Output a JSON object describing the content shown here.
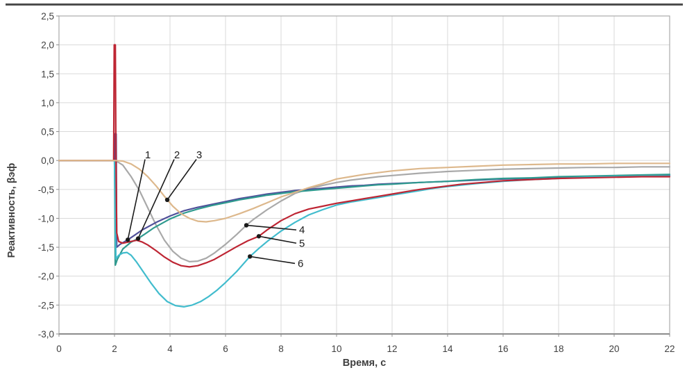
{
  "colors": {
    "grid": "#d9d9d9",
    "plot_border": "#ababab",
    "axis_line": "#8c8c8c",
    "tick_text": "#3f3f3f",
    "annotation": "#1a1a1a",
    "top_rule": "#4d4d4d",
    "background": "#ffffff"
  },
  "chart_data": {
    "type": "line",
    "title": "",
    "xlabel": "Время, с",
    "ylabel": "Реактивность, βэф",
    "xlim": [
      0,
      22
    ],
    "ylim": [
      -3.0,
      2.5
    ],
    "grid": true,
    "legend": "none",
    "xticks": [
      0,
      2,
      4,
      6,
      8,
      10,
      12,
      14,
      16,
      18,
      20,
      22
    ],
    "xtick_labels": [
      "0",
      "2",
      "4",
      "6",
      "8",
      "10",
      "12",
      "14",
      "16",
      "18",
      "20",
      "22"
    ],
    "yticks": [
      2.5,
      2.0,
      1.5,
      1.0,
      0.5,
      0.0,
      -0.5,
      -1.0,
      -1.5,
      -2.0,
      -2.5,
      -3.0
    ],
    "ytick_labels": [
      "2,5",
      "2,0",
      "1,5",
      "1,0",
      "0,5",
      "0,0",
      "-0,5",
      "-1,0",
      "-1,5",
      "-2,0",
      "-2,5",
      "-3,0"
    ],
    "draw_order": [
      "4",
      "1",
      "2",
      "6",
      "5",
      "3"
    ],
    "series": [
      {
        "name": "1",
        "color": "#50509a",
        "points": [
          [
            0,
            0
          ],
          [
            1.5,
            0
          ],
          [
            2.0,
            0
          ],
          [
            2.02,
            0.46
          ],
          [
            2.06,
            0.46
          ],
          [
            2.08,
            -1.5
          ],
          [
            2.2,
            -1.45
          ],
          [
            2.48,
            -1.37
          ],
          [
            2.7,
            -1.3
          ],
          [
            3.0,
            -1.2
          ],
          [
            3.5,
            -1.07
          ],
          [
            4.0,
            -0.96
          ],
          [
            4.5,
            -0.87
          ],
          [
            5.0,
            -0.81
          ],
          [
            5.5,
            -0.76
          ],
          [
            6.0,
            -0.71
          ],
          [
            6.5,
            -0.66
          ],
          [
            7.0,
            -0.62
          ],
          [
            7.5,
            -0.58
          ],
          [
            8.0,
            -0.55
          ],
          [
            8.5,
            -0.52
          ],
          [
            9.0,
            -0.5
          ],
          [
            9.5,
            -0.48
          ],
          [
            10.0,
            -0.46
          ],
          [
            10.5,
            -0.44
          ],
          [
            11.0,
            -0.43
          ],
          [
            11.5,
            -0.41
          ],
          [
            12.0,
            -0.4
          ],
          [
            13.0,
            -0.38
          ],
          [
            14.0,
            -0.36
          ],
          [
            15.0,
            -0.34
          ],
          [
            16.0,
            -0.32
          ],
          [
            17.0,
            -0.31
          ],
          [
            18.0,
            -0.3
          ],
          [
            19.0,
            -0.29
          ],
          [
            20.0,
            -0.28
          ],
          [
            21.0,
            -0.27
          ],
          [
            22.0,
            -0.26
          ]
        ]
      },
      {
        "name": "2",
        "color": "#2f9a8f",
        "points": [
          [
            0,
            0
          ],
          [
            1.5,
            0
          ],
          [
            2.0,
            0
          ],
          [
            2.03,
            -1.81
          ],
          [
            2.1,
            -1.71
          ],
          [
            2.3,
            -1.53
          ],
          [
            2.6,
            -1.41
          ],
          [
            2.85,
            -1.35
          ],
          [
            3.1,
            -1.27
          ],
          [
            3.4,
            -1.17
          ],
          [
            3.7,
            -1.09
          ],
          [
            4.0,
            -1.01
          ],
          [
            4.5,
            -0.91
          ],
          [
            5.0,
            -0.84
          ],
          [
            5.5,
            -0.78
          ],
          [
            6.0,
            -0.73
          ],
          [
            6.5,
            -0.68
          ],
          [
            7.0,
            -0.64
          ],
          [
            7.5,
            -0.6
          ],
          [
            8.0,
            -0.57
          ],
          [
            8.5,
            -0.54
          ],
          [
            9.0,
            -0.52
          ],
          [
            9.5,
            -0.5
          ],
          [
            10.0,
            -0.48
          ],
          [
            10.5,
            -0.46
          ],
          [
            11.0,
            -0.44
          ],
          [
            11.5,
            -0.42
          ],
          [
            12.0,
            -0.41
          ],
          [
            13.0,
            -0.38
          ],
          [
            14.0,
            -0.36
          ],
          [
            15.0,
            -0.33
          ],
          [
            16.0,
            -0.31
          ],
          [
            17.0,
            -0.3
          ],
          [
            18.0,
            -0.28
          ],
          [
            19.0,
            -0.27
          ],
          [
            20.0,
            -0.26
          ],
          [
            21.0,
            -0.25
          ],
          [
            22.0,
            -0.24
          ]
        ]
      },
      {
        "name": "3",
        "color": "#ddb88c",
        "points": [
          [
            0,
            0
          ],
          [
            1.0,
            0
          ],
          [
            2.0,
            0
          ],
          [
            2.3,
            -0.01
          ],
          [
            2.6,
            -0.06
          ],
          [
            2.9,
            -0.15
          ],
          [
            3.2,
            -0.28
          ],
          [
            3.5,
            -0.44
          ],
          [
            3.8,
            -0.62
          ],
          [
            4.1,
            -0.79
          ],
          [
            4.4,
            -0.92
          ],
          [
            4.7,
            -1.0
          ],
          [
            5.0,
            -1.05
          ],
          [
            5.3,
            -1.06
          ],
          [
            5.6,
            -1.04
          ],
          [
            6.0,
            -1.0
          ],
          [
            6.5,
            -0.92
          ],
          [
            7.0,
            -0.83
          ],
          [
            7.5,
            -0.73
          ],
          [
            8.0,
            -0.63
          ],
          [
            8.5,
            -0.55
          ],
          [
            9.0,
            -0.47
          ],
          [
            9.5,
            -0.4
          ],
          [
            10.0,
            -0.32
          ],
          [
            10.5,
            -0.28
          ],
          [
            11.0,
            -0.24
          ],
          [
            11.5,
            -0.21
          ],
          [
            12.0,
            -0.18
          ],
          [
            12.5,
            -0.16
          ],
          [
            13.0,
            -0.14
          ],
          [
            13.5,
            -0.13
          ],
          [
            14.0,
            -0.12
          ],
          [
            15.0,
            -0.1
          ],
          [
            16.0,
            -0.08
          ],
          [
            17.0,
            -0.07
          ],
          [
            18.0,
            -0.06
          ],
          [
            19.0,
            -0.06
          ],
          [
            20.0,
            -0.05
          ],
          [
            21.0,
            -0.05
          ],
          [
            22.0,
            -0.05
          ]
        ]
      },
      {
        "name": "4",
        "color": "#a9a9a9",
        "points": [
          [
            0,
            0
          ],
          [
            1.5,
            0
          ],
          [
            2.0,
            0
          ],
          [
            2.1,
            -0.02
          ],
          [
            2.3,
            -0.08
          ],
          [
            2.6,
            -0.28
          ],
          [
            2.9,
            -0.52
          ],
          [
            3.2,
            -0.82
          ],
          [
            3.5,
            -1.12
          ],
          [
            3.8,
            -1.38
          ],
          [
            4.1,
            -1.57
          ],
          [
            4.4,
            -1.69
          ],
          [
            4.7,
            -1.75
          ],
          [
            5.0,
            -1.74
          ],
          [
            5.3,
            -1.69
          ],
          [
            5.6,
            -1.6
          ],
          [
            6.0,
            -1.45
          ],
          [
            6.4,
            -1.28
          ],
          [
            6.75,
            -1.12
          ],
          [
            7.0,
            -1.02
          ],
          [
            7.5,
            -0.85
          ],
          [
            8.0,
            -0.7
          ],
          [
            8.5,
            -0.57
          ],
          [
            9.0,
            -0.49
          ],
          [
            9.5,
            -0.43
          ],
          [
            10.0,
            -0.38
          ],
          [
            10.5,
            -0.34
          ],
          [
            11.0,
            -0.31
          ],
          [
            11.5,
            -0.28
          ],
          [
            12.0,
            -0.26
          ],
          [
            13.0,
            -0.22
          ],
          [
            14.0,
            -0.19
          ],
          [
            15.0,
            -0.17
          ],
          [
            16.0,
            -0.15
          ],
          [
            17.0,
            -0.14
          ],
          [
            18.0,
            -0.13
          ],
          [
            19.0,
            -0.12
          ],
          [
            20.0,
            -0.12
          ],
          [
            21.0,
            -0.11
          ],
          [
            22.0,
            -0.11
          ]
        ]
      },
      {
        "name": "5",
        "color": "#be2533",
        "points": [
          [
            0,
            0
          ],
          [
            1.5,
            0
          ],
          [
            1.97,
            0
          ],
          [
            1.99,
            2.0
          ],
          [
            2.03,
            2.0
          ],
          [
            2.05,
            0.2
          ],
          [
            2.08,
            -1.25
          ],
          [
            2.15,
            -1.4
          ],
          [
            2.3,
            -1.43
          ],
          [
            2.5,
            -1.41
          ],
          [
            2.8,
            -1.38
          ],
          [
            3.0,
            -1.41
          ],
          [
            3.2,
            -1.46
          ],
          [
            3.5,
            -1.56
          ],
          [
            3.8,
            -1.67
          ],
          [
            4.1,
            -1.76
          ],
          [
            4.4,
            -1.82
          ],
          [
            4.7,
            -1.84
          ],
          [
            5.0,
            -1.82
          ],
          [
            5.3,
            -1.77
          ],
          [
            5.6,
            -1.71
          ],
          [
            6.0,
            -1.6
          ],
          [
            6.4,
            -1.49
          ],
          [
            6.8,
            -1.39
          ],
          [
            7.2,
            -1.31
          ],
          [
            7.5,
            -1.2
          ],
          [
            8.0,
            -1.04
          ],
          [
            8.5,
            -0.92
          ],
          [
            9.0,
            -0.84
          ],
          [
            9.5,
            -0.79
          ],
          [
            10.0,
            -0.74
          ],
          [
            10.5,
            -0.7
          ],
          [
            11.0,
            -0.66
          ],
          [
            11.5,
            -0.62
          ],
          [
            12.0,
            -0.58
          ],
          [
            12.5,
            -0.54
          ],
          [
            13.0,
            -0.5
          ],
          [
            13.5,
            -0.47
          ],
          [
            14.0,
            -0.44
          ],
          [
            14.5,
            -0.41
          ],
          [
            15.0,
            -0.39
          ],
          [
            16.0,
            -0.35
          ],
          [
            17.0,
            -0.33
          ],
          [
            18.0,
            -0.31
          ],
          [
            19.0,
            -0.3
          ],
          [
            20.0,
            -0.29
          ],
          [
            21.0,
            -0.28
          ],
          [
            22.0,
            -0.28
          ]
        ]
      },
      {
        "name": "6",
        "color": "#41bccd",
        "points": [
          [
            0,
            0
          ],
          [
            1.5,
            0
          ],
          [
            2.0,
            0
          ],
          [
            2.05,
            -1.7
          ],
          [
            2.15,
            -1.64
          ],
          [
            2.3,
            -1.6
          ],
          [
            2.45,
            -1.59
          ],
          [
            2.6,
            -1.64
          ],
          [
            2.8,
            -1.76
          ],
          [
            3.0,
            -1.9
          ],
          [
            3.3,
            -2.11
          ],
          [
            3.6,
            -2.3
          ],
          [
            3.9,
            -2.44
          ],
          [
            4.2,
            -2.51
          ],
          [
            4.5,
            -2.53
          ],
          [
            4.8,
            -2.5
          ],
          [
            5.1,
            -2.44
          ],
          [
            5.4,
            -2.35
          ],
          [
            5.7,
            -2.24
          ],
          [
            6.0,
            -2.11
          ],
          [
            6.4,
            -1.92
          ],
          [
            6.88,
            -1.66
          ],
          [
            7.2,
            -1.52
          ],
          [
            7.5,
            -1.4
          ],
          [
            8.0,
            -1.22
          ],
          [
            8.5,
            -1.07
          ],
          [
            9.0,
            -0.94
          ],
          [
            9.5,
            -0.85
          ],
          [
            10.0,
            -0.77
          ],
          [
            10.5,
            -0.72
          ],
          [
            11.0,
            -0.68
          ],
          [
            11.5,
            -0.64
          ],
          [
            12.0,
            -0.6
          ],
          [
            12.5,
            -0.56
          ],
          [
            13.0,
            -0.52
          ],
          [
            13.5,
            -0.48
          ],
          [
            14.0,
            -0.45
          ],
          [
            15.0,
            -0.4
          ],
          [
            16.0,
            -0.36
          ],
          [
            17.0,
            -0.33
          ],
          [
            18.0,
            -0.31
          ],
          [
            19.0,
            -0.29
          ],
          [
            20.0,
            -0.28
          ],
          [
            21.0,
            -0.27
          ],
          [
            22.0,
            -0.27
          ]
        ]
      }
    ],
    "annotations": [
      {
        "label": "1",
        "dot": [
          2.48,
          -1.37
        ],
        "line_end": [
          3.1,
          0.02
        ],
        "text": [
          3.2,
          0.1
        ],
        "align": "above"
      },
      {
        "label": "2",
        "dot": [
          2.85,
          -1.35
        ],
        "line_end": [
          4.15,
          0.02
        ],
        "text": [
          4.25,
          0.1
        ],
        "align": "above"
      },
      {
        "label": "3",
        "dot": [
          3.9,
          -0.68
        ],
        "line_end": [
          4.95,
          0.02
        ],
        "text": [
          5.05,
          0.1
        ],
        "align": "above"
      },
      {
        "label": "4",
        "dot": [
          6.75,
          -1.12
        ],
        "line_end": [
          8.55,
          -1.2
        ],
        "text": [
          8.65,
          -1.2
        ],
        "align": "right"
      },
      {
        "label": "5",
        "dot": [
          7.2,
          -1.31
        ],
        "line_end": [
          8.55,
          -1.43
        ],
        "text": [
          8.65,
          -1.43
        ],
        "align": "right"
      },
      {
        "label": "6",
        "dot": [
          6.88,
          -1.66
        ],
        "line_end": [
          8.5,
          -1.78
        ],
        "text": [
          8.6,
          -1.78
        ],
        "align": "right"
      }
    ]
  }
}
